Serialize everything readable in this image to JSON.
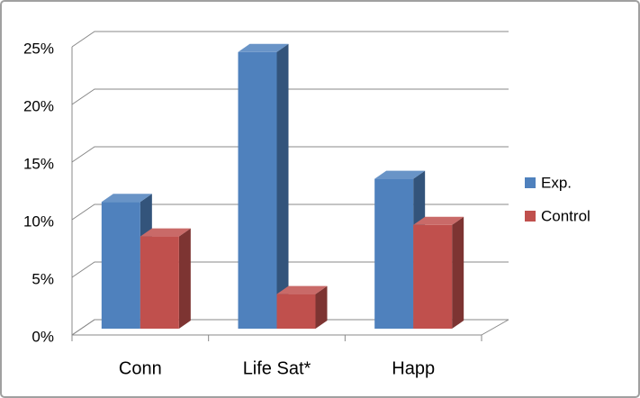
{
  "chart_data": {
    "type": "bar3d",
    "categories": [
      "Conn",
      "Life Sat*",
      "Happ"
    ],
    "series": [
      {
        "name": "Exp.",
        "color": "#4f81bd",
        "values": [
          11,
          24,
          13
        ]
      },
      {
        "name": "Control",
        "color": "#c0504d",
        "values": [
          8,
          3,
          9
        ]
      }
    ],
    "ylim": [
      0,
      25
    ],
    "yticks": [
      {
        "value": 0,
        "label": "0%"
      },
      {
        "value": 5,
        "label": "5%"
      },
      {
        "value": 10,
        "label": "10%"
      },
      {
        "value": 15,
        "label": "15%"
      },
      {
        "value": 20,
        "label": "20%"
      },
      {
        "value": 25,
        "label": "25%"
      }
    ],
    "grid": true,
    "legend": "right"
  }
}
